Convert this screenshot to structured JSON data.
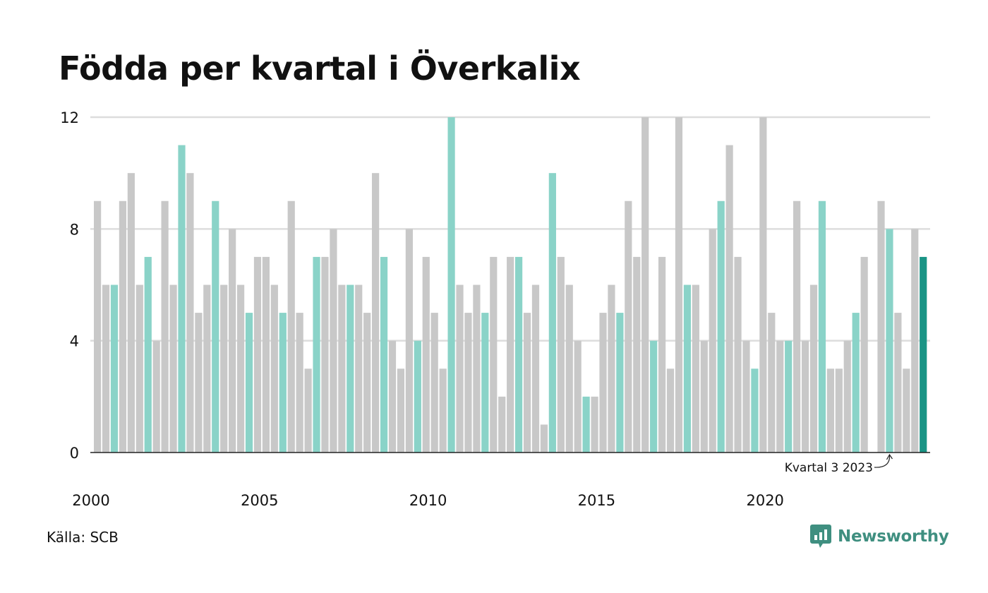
{
  "title": "Födda per kvartal i Överkalix",
  "source": "Källa: SCB",
  "brand": "Newsworthy",
  "chart_data": {
    "type": "bar",
    "title": "Födda per kvartal i Överkalix",
    "xlabel": "",
    "ylabel": "",
    "ylim": [
      0,
      12
    ],
    "yticks": [
      0,
      4,
      8,
      12
    ],
    "xticks": [
      "2000",
      "2005",
      "2010",
      "2015",
      "2020"
    ],
    "grid": "horizontal",
    "start_year": 2000,
    "values": [
      9,
      6,
      6,
      9,
      10,
      6,
      7,
      4,
      9,
      6,
      11,
      10,
      5,
      6,
      9,
      6,
      8,
      6,
      5,
      7,
      7,
      6,
      5,
      9,
      5,
      3,
      7,
      7,
      8,
      6,
      6,
      6,
      5,
      10,
      7,
      4,
      3,
      8,
      4,
      7,
      5,
      3,
      12,
      6,
      5,
      6,
      5,
      7,
      2,
      7,
      7,
      5,
      6,
      1,
      10,
      7,
      6,
      4,
      2,
      2,
      5,
      6,
      5,
      9,
      7,
      12,
      4,
      7,
      3,
      12,
      6,
      6,
      4,
      8,
      9,
      11,
      7,
      4,
      3,
      12,
      5,
      4,
      4,
      9,
      4,
      6,
      9,
      3,
      3,
      4,
      5,
      7,
      0,
      9,
      8,
      5,
      3,
      8,
      7
    ],
    "highlight_quarter": 3,
    "colors": {
      "default": "#c8c8c8",
      "highlight": "#8ad3c8",
      "latest": "#1a9485",
      "grid": "#dddddd",
      "axis": "#222222"
    },
    "annotation": {
      "text": "Kvartal 3 2023",
      "bar_index": 94
    }
  }
}
